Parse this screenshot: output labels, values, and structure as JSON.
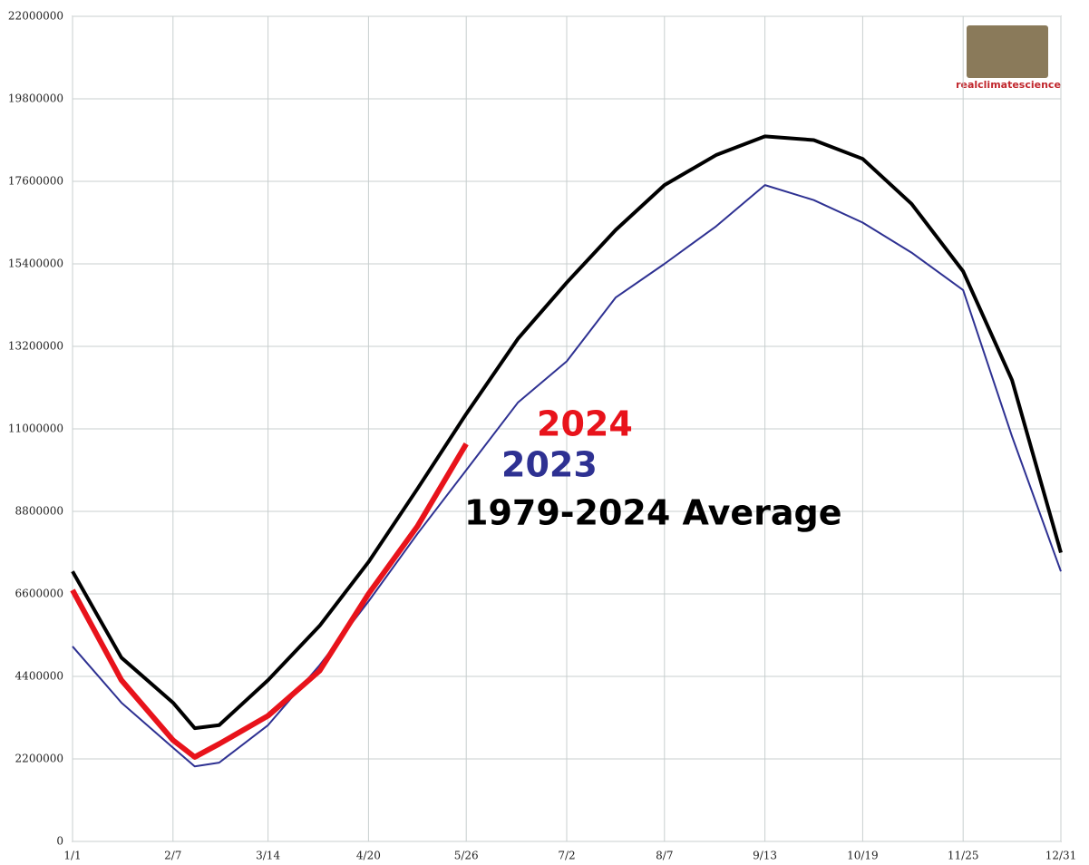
{
  "chart_data": {
    "type": "line",
    "watermark": "realclimatescience",
    "x": [
      1,
      19,
      38,
      46,
      55,
      73,
      92,
      110,
      128,
      146,
      165,
      183,
      201,
      219,
      238,
      256,
      274,
      292,
      310,
      329,
      347,
      365
    ],
    "xlim": [
      1,
      365
    ],
    "xticks": [
      {
        "value": 1,
        "label": "1/1"
      },
      {
        "value": 38,
        "label": "2/7"
      },
      {
        "value": 73,
        "label": "3/14"
      },
      {
        "value": 110,
        "label": "4/20"
      },
      {
        "value": 146,
        "label": "5/26"
      },
      {
        "value": 183,
        "label": "7/2"
      },
      {
        "value": 219,
        "label": "8/7"
      },
      {
        "value": 256,
        "label": "9/13"
      },
      {
        "value": 292,
        "label": "10/19"
      },
      {
        "value": 329,
        "label": "11/25"
      },
      {
        "value": 365,
        "label": "12/31"
      }
    ],
    "ylim": [
      0,
      22000000
    ],
    "yticks": [
      0,
      2200000,
      4400000,
      6600000,
      8800000,
      11000000,
      13200000,
      15400000,
      17600000,
      19800000,
      22000000
    ],
    "grid": true,
    "series": [
      {
        "name": "1979-2024 Average",
        "color": "#000000",
        "values": [
          7200000,
          4900000,
          3700000,
          3020000,
          3100000,
          4300000,
          5750000,
          7450000,
          9400000,
          11400000,
          13400000,
          14900000,
          16300000,
          17500000,
          18300000,
          18800000,
          18700000,
          18200000,
          17000000,
          15200000,
          12300000,
          7700000
        ]
      },
      {
        "name": "2023",
        "color": "#2e3192",
        "values": [
          5200000,
          3700000,
          2500000,
          2000000,
          2100000,
          3100000,
          4700000,
          6400000,
          8200000,
          9900000,
          11700000,
          12800000,
          14500000,
          15400000,
          16400000,
          17500000,
          17100000,
          16500000,
          15700000,
          14700000,
          10800000,
          7200000
        ]
      },
      {
        "name": "2024",
        "color": "#e8131b",
        "values": [
          6700000,
          4300000,
          2700000,
          2250000,
          2600000,
          3350000,
          4550000,
          6600000,
          8400000,
          10600000,
          null,
          null,
          null,
          null,
          null,
          null,
          null,
          null,
          null,
          null,
          null,
          null
        ]
      }
    ]
  }
}
